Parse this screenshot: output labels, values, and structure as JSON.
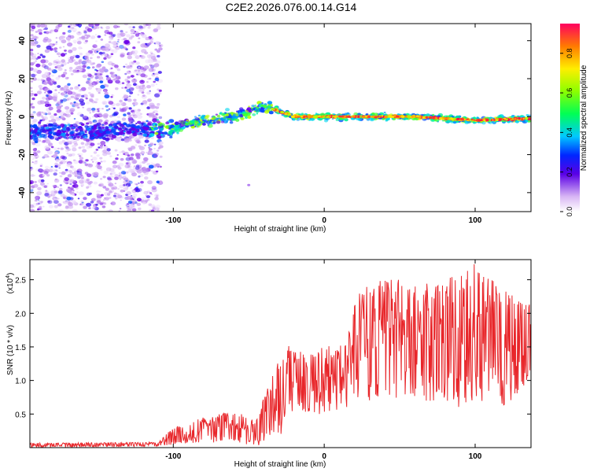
{
  "figure": {
    "title": "C2E2.2026.076.00.14.G14"
  },
  "chart_data": [
    {
      "type": "heatmap",
      "xlabel": "Height of straight line (km)",
      "ylabel": "Frequency (Hz)",
      "xlim": [
        -195,
        137
      ],
      "ylim": [
        -50,
        49
      ],
      "xticks": [
        -100,
        0,
        100
      ],
      "yticks": [
        -40,
        -20,
        0,
        20,
        40
      ],
      "colorbar": {
        "label": "Normalized spectral amplitude",
        "range": [
          0,
          0.95
        ],
        "ticks": [
          "0.0",
          "0.2",
          "0.4",
          "0.6",
          "0.8"
        ]
      },
      "ridge": [
        [
          -180,
          -8
        ],
        [
          -150,
          -8
        ],
        [
          -120,
          -7
        ],
        [
          -100,
          -6
        ],
        [
          -80,
          -2
        ],
        [
          -60,
          0
        ],
        [
          -40,
          5
        ],
        [
          -30,
          3
        ],
        [
          -20,
          0
        ],
        [
          0,
          0
        ],
        [
          60,
          0
        ],
        [
          100,
          -2
        ],
        [
          137,
          -1
        ]
      ]
    },
    {
      "type": "line",
      "xlabel": "Height of straight line (km)",
      "ylabel": "SNR (10 * v/v)",
      "scale_label": "(x10",
      "scale_exp": "4",
      "xlim": [
        -195,
        137
      ],
      "ylim": [
        0,
        2.8
      ],
      "xticks": [
        -100,
        0,
        100
      ],
      "yticks": [
        "0.5",
        "1.0",
        "1.5",
        "2.0",
        "2.5"
      ],
      "color": "#e8262a",
      "envelope": {
        "x": [
          -195,
          -110,
          -100,
          -80,
          -60,
          -45,
          -40,
          -30,
          -25,
          -20,
          -10,
          0,
          15,
          20,
          40,
          60,
          80,
          100,
          120,
          137
        ],
        "low": [
          0.0,
          0.02,
          0.04,
          0.08,
          0.06,
          0.03,
          0.05,
          0.1,
          0.35,
          0.6,
          0.5,
          0.5,
          0.6,
          0.7,
          0.7,
          0.7,
          0.6,
          0.6,
          0.6,
          1.0
        ],
        "high": [
          0.07,
          0.08,
          0.3,
          0.45,
          0.55,
          0.4,
          0.75,
          1.3,
          1.6,
          1.45,
          1.4,
          1.5,
          1.55,
          2.3,
          2.55,
          2.45,
          2.5,
          2.75,
          2.35,
          2.2
        ]
      }
    }
  ]
}
